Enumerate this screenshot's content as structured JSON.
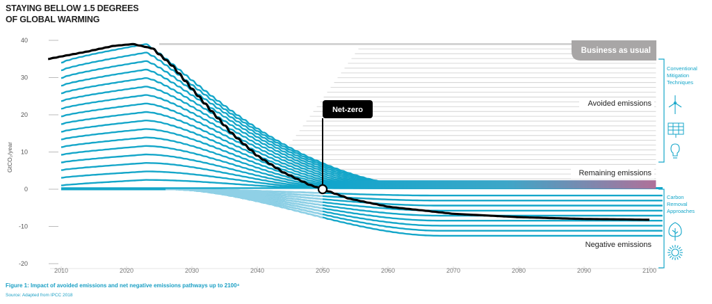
{
  "title_line1": "STAYING BELLOW 1.5 DEGREES",
  "title_line2": "OF GLOBAL WARMING",
  "caption": "Figure 1: Impact of avoided emissions and net negative emissions pathways up to 2100⁴",
  "source": "Source: Adapted from IPCC 2018",
  "colors": {
    "teal": "#14a6c9",
    "light_teal": "#8fd0e6",
    "gray_line": "#cccccc",
    "badge_gray": "#a8a6a6",
    "black": "#000000",
    "remaining_start": "#0fa5cc",
    "remaining_end": "#b07099"
  },
  "chart_data": {
    "type": "line",
    "ylabel": "GtCO₂/year",
    "xlim": [
      2008,
      2102
    ],
    "ylim": [
      -20,
      40
    ],
    "x_ticks": [
      2010,
      2020,
      2030,
      2040,
      2050,
      2060,
      2070,
      2080,
      2090,
      2100
    ],
    "y_ticks": [
      40,
      30,
      20,
      10,
      0,
      -10,
      -20
    ],
    "net_path": {
      "x": [
        2008,
        2014,
        2018,
        2021,
        2024,
        2027,
        2030,
        2033,
        2036,
        2040,
        2044,
        2048,
        2050,
        2054,
        2060,
        2070,
        2080,
        2090,
        2100
      ],
      "y": [
        35,
        37,
        38.5,
        39,
        37.8,
        33.2,
        27,
        21,
        15.2,
        9,
        4.5,
        1.2,
        0,
        -2.5,
        -4.7,
        -6.6,
        -7.5,
        -8,
        -8.2
      ]
    },
    "business_as_usual_level": 39,
    "net_zero_year": 2050,
    "band_count_positive": 17,
    "band_count_negative": 9,
    "negative_floor": -12.5,
    "labels": {
      "business_as_usual": "Business as usual",
      "avoided": "Avoided emissions",
      "remaining": "Remaining emissions",
      "negative": "Negative emissions",
      "net_zero": "Net-zero"
    },
    "side_panel": {
      "conventional": "Conventional Mitigation Techniques",
      "carbon_removal": "Carbon Removal Approaches",
      "conventional_lines": [
        "Conventional",
        "Mitigation",
        "Techniques"
      ],
      "carbon_removal_lines": [
        "Carbon",
        "Removal",
        "Approaches"
      ],
      "conventional_icons": [
        "wind-turbine-icon",
        "solar-panel-icon",
        "light-bulb-icon"
      ],
      "carbon_removal_icons": [
        "tree-icon",
        "sun-burst-icon"
      ]
    }
  }
}
